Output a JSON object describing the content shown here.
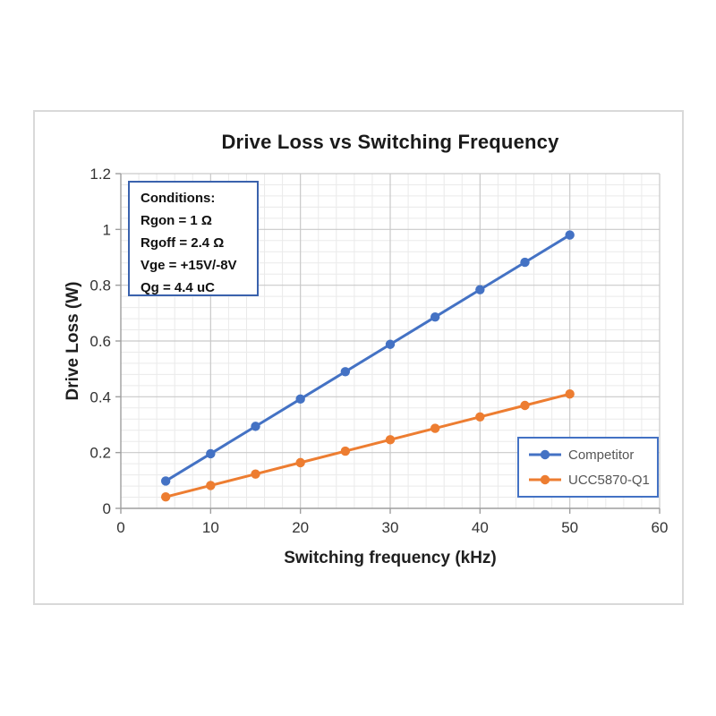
{
  "chart_data": {
    "type": "line",
    "title": "Drive Loss vs Switching Frequency",
    "xlabel": "Switching frequency (kHz)",
    "ylabel": "Drive Loss (W)",
    "x": [
      5,
      10,
      15,
      20,
      25,
      30,
      35,
      40,
      45,
      50
    ],
    "series": [
      {
        "name": "Competitor",
        "color": "#4472C4",
        "values": [
          0.098,
          0.196,
          0.294,
          0.392,
          0.49,
          0.588,
          0.686,
          0.784,
          0.882,
          0.98
        ]
      },
      {
        "name": "UCC5870-Q1",
        "color": "#ED7D31",
        "values": [
          0.041,
          0.082,
          0.123,
          0.164,
          0.205,
          0.246,
          0.287,
          0.328,
          0.369,
          0.41
        ]
      }
    ],
    "xlim": [
      0,
      60
    ],
    "ylim": [
      0,
      1.2
    ],
    "x_ticks": [
      "0",
      "10",
      "20",
      "30",
      "40",
      "50",
      "60"
    ],
    "y_ticks": [
      "0",
      "0.2",
      "0.4",
      "0.6",
      "0.8",
      "1",
      "1.2"
    ],
    "grid": {
      "major": true,
      "minor": true,
      "x_minor_step": 2,
      "y_minor_step": 0.04
    },
    "legend_position": "inside-bottom-right",
    "annotation_box": {
      "lines": [
        "Conditions:",
        "Rgon = 1 Ω",
        "Rgoff = 2.4 Ω",
        "Vge = +15V/-8V",
        "Qg = 4.4 uC"
      ]
    },
    "marker": "circle",
    "line_width": 3
  },
  "colors": {
    "background": "#FFFFFF",
    "frame_border": "#D9D9D9",
    "grid_major": "#C9C9C9",
    "grid_minor": "#EAEAEA",
    "axis_line": "#9E9E9E",
    "tick_text": "#333333",
    "title_text": "#1A1A1A",
    "conditions_border": "#3A62AD",
    "legend_border": "#4472C4",
    "legend_text": "#555555"
  }
}
